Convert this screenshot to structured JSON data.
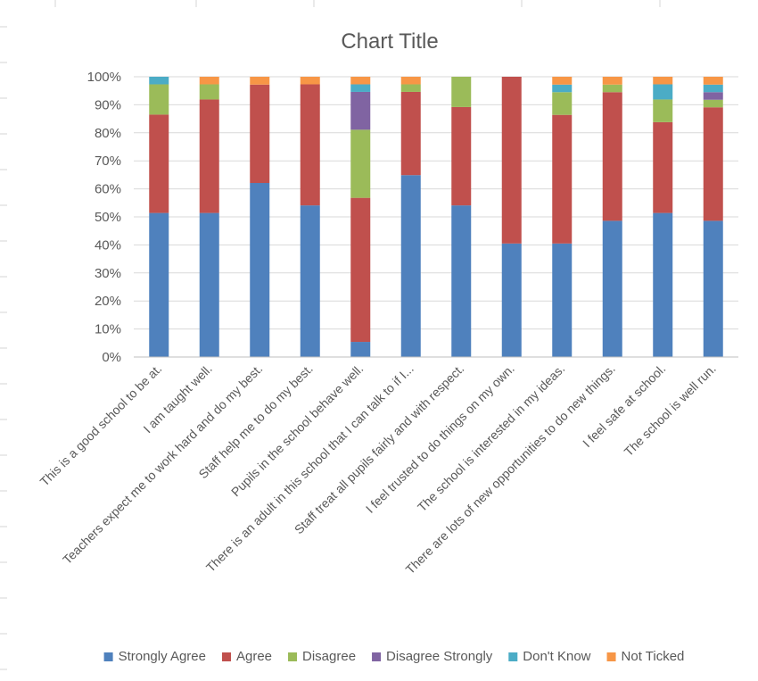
{
  "chart_data": {
    "type": "bar",
    "stacked": true,
    "title": "Chart Title",
    "xlabel": "",
    "ylabel": "",
    "ylim": [
      0,
      100
    ],
    "yticks": [
      "0%",
      "10%",
      "20%",
      "30%",
      "40%",
      "50%",
      "60%",
      "70%",
      "80%",
      "90%",
      "100%"
    ],
    "grid": true,
    "legend_position": "bottom",
    "categories": [
      "This is a good school to be at.",
      "I am taught well.",
      "Teachers expect me to work hard and do my best.",
      "Staff help me to do my best.",
      "Pupils in the school behave well.",
      "There is an adult in this school that I can talk to if I...",
      "Staff treat all pupils fairly and with respect.",
      "I feel trusted to do things on my own.",
      "The school is interested in my ideas.",
      "There are lots of new opportunities to do new things.",
      "I feel safe at school.",
      "The school is well run."
    ],
    "series": [
      {
        "name": "Strongly Agree",
        "color": "#4f81bd",
        "values": [
          51.4,
          51.4,
          62.1,
          54.1,
          5.4,
          64.9,
          54.1,
          40.5,
          40.5,
          48.6,
          51.4,
          48.6
        ]
      },
      {
        "name": "Agree",
        "color": "#c0504d",
        "values": [
          35.1,
          40.5,
          35.1,
          43.2,
          51.4,
          29.7,
          35.1,
          59.5,
          45.9,
          45.9,
          32.4,
          40.5
        ]
      },
      {
        "name": "Disagree",
        "color": "#9bbb59",
        "values": [
          10.8,
          5.4,
          0,
          0,
          24.3,
          2.7,
          10.8,
          0,
          8.1,
          2.7,
          8.1,
          2.7
        ]
      },
      {
        "name": "Disagree Strongly",
        "color": "#8064a2",
        "values": [
          0,
          0,
          0,
          0,
          13.5,
          0,
          0,
          0,
          0,
          0,
          0,
          2.7
        ]
      },
      {
        "name": "Don't Know",
        "color": "#4bacc6",
        "values": [
          2.7,
          0,
          0,
          0,
          2.7,
          0,
          0,
          0,
          2.7,
          0,
          5.4,
          2.7
        ]
      },
      {
        "name": "Not Ticked",
        "color": "#f79646",
        "values": [
          0,
          2.7,
          2.8,
          2.7,
          2.7,
          2.7,
          0,
          0,
          2.8,
          2.8,
          2.7,
          2.8
        ]
      }
    ]
  }
}
